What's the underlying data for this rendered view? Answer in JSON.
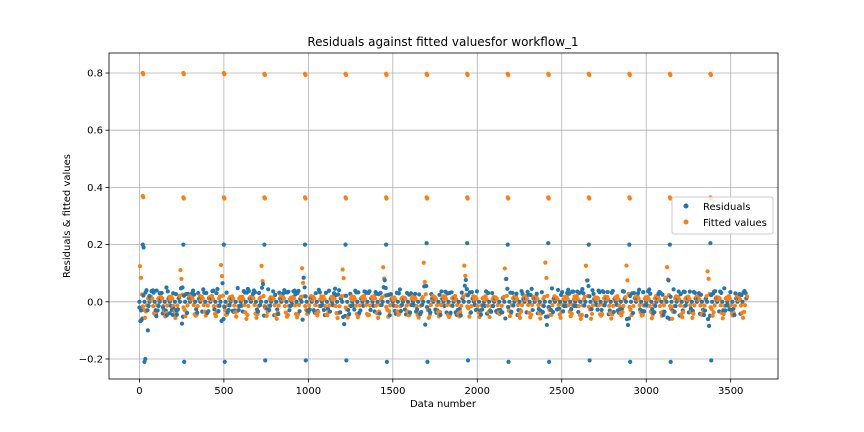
{
  "chart_data": {
    "type": "scatter",
    "title": "Residuals against fitted valuesfor workflow_1",
    "xlabel": "Data number",
    "ylabel": "Residuals & fitted values",
    "xlim": [
      -180,
      3780
    ],
    "ylim": [
      -0.27,
      0.87
    ],
    "xticks": [
      0,
      500,
      1000,
      1500,
      2000,
      2500,
      3000,
      3500
    ],
    "yticks": [
      -0.2,
      0.0,
      0.2,
      0.4,
      0.6,
      0.8
    ],
    "ytick_labels": [
      "−0.2",
      "0.0",
      "0.2",
      "0.4",
      "0.6",
      "0.8"
    ],
    "grid": true,
    "legend": {
      "placement": "center-right"
    },
    "period": 240,
    "n_points": 3600,
    "series": [
      {
        "name": "Residuals",
        "color": "#1f77b4",
        "description_levels": {
          "outlier_high": 0.2,
          "outlier_low": -0.205
        },
        "values": [
          [
            0,
            -0.02
          ],
          [
            10,
            -0.03
          ],
          [
            20,
            0.2
          ],
          [
            25,
            0.19
          ],
          [
            30,
            -0.21
          ],
          [
            35,
            -0.2
          ],
          [
            50,
            -0.1
          ],
          [
            60,
            0.02
          ],
          [
            80,
            0.04
          ],
          [
            100,
            -0.05
          ],
          [
            120,
            0.03
          ],
          [
            140,
            -0.02
          ],
          [
            160,
            0.05
          ],
          [
            180,
            -0.04
          ],
          [
            200,
            0.03
          ],
          [
            220,
            -0.03
          ],
          [
            260,
            0.2
          ],
          [
            265,
            -0.21
          ],
          [
            255,
            0.05
          ],
          [
            500,
            0.2
          ],
          [
            505,
            -0.21
          ],
          [
            740,
            0.2
          ],
          [
            745,
            -0.205
          ],
          [
            980,
            0.2
          ],
          [
            985,
            -0.205
          ],
          [
            1220,
            0.2
          ],
          [
            1225,
            -0.205
          ],
          [
            1460,
            0.2
          ],
          [
            1465,
            -0.21
          ],
          [
            1700,
            0.205
          ],
          [
            1705,
            -0.21
          ],
          [
            1940,
            0.205
          ],
          [
            1945,
            -0.205
          ],
          [
            2180,
            0.2
          ],
          [
            2185,
            -0.21
          ],
          [
            2420,
            0.205
          ],
          [
            2425,
            -0.21
          ],
          [
            2660,
            0.2
          ],
          [
            2665,
            -0.205
          ],
          [
            2900,
            0.2
          ],
          [
            2905,
            -0.21
          ],
          [
            3140,
            0.2
          ],
          [
            3145,
            -0.21
          ],
          [
            3380,
            0.205
          ],
          [
            3385,
            -0.205
          ]
        ]
      },
      {
        "name": "Fitted values",
        "color": "#ff7f0e",
        "description_levels": {
          "high": 0.8,
          "mid": 0.365
        },
        "values": [
          [
            20,
            0.8
          ],
          [
            20,
            0.37
          ],
          [
            260,
            0.8
          ],
          [
            260,
            0.365
          ],
          [
            500,
            0.8
          ],
          [
            500,
            0.365
          ],
          [
            740,
            0.797
          ],
          [
            740,
            0.365
          ],
          [
            980,
            0.797
          ],
          [
            980,
            0.365
          ],
          [
            1220,
            0.797
          ],
          [
            1220,
            0.365
          ],
          [
            1460,
            0.797
          ],
          [
            1460,
            0.365
          ],
          [
            1700,
            0.797
          ],
          [
            1700,
            0.365
          ],
          [
            1940,
            0.797
          ],
          [
            1940,
            0.365
          ],
          [
            2180,
            0.797
          ],
          [
            2180,
            0.365
          ],
          [
            2420,
            0.797
          ],
          [
            2420,
            0.365
          ],
          [
            2660,
            0.797
          ],
          [
            2660,
            0.365
          ],
          [
            2900,
            0.797
          ],
          [
            2900,
            0.365
          ],
          [
            3140,
            0.797
          ],
          [
            3140,
            0.365
          ],
          [
            3380,
            0.797
          ],
          [
            3380,
            0.365
          ]
        ]
      }
    ]
  }
}
